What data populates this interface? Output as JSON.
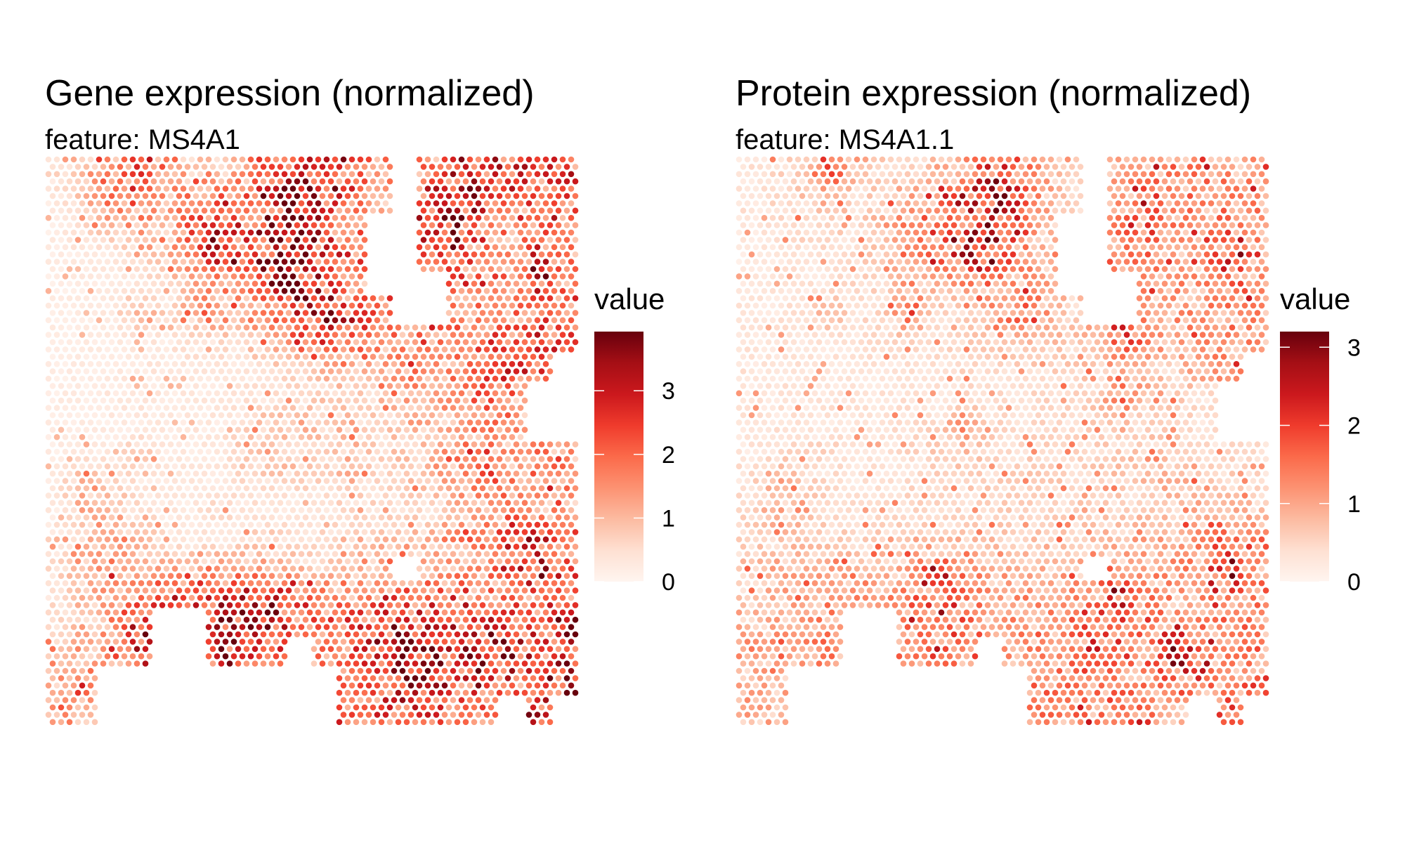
{
  "palette": [
    "#fff5f0",
    "#fee0d2",
    "#fcbba1",
    "#fc9272",
    "#fb6a4a",
    "#ef3b2c",
    "#cb181d",
    "#a50f15",
    "#67000d"
  ],
  "chart_data": [
    {
      "type": "heatmap",
      "title": "Gene expression (normalized)",
      "subtitle": "feature:  MS4A1",
      "legend": {
        "title": "value",
        "range": [
          0,
          3.93
        ],
        "ticks": [
          0,
          1,
          2,
          3
        ],
        "tick_labels": [
          "0",
          "1",
          "2",
          "3"
        ],
        "placement": "right"
      },
      "grid_note": "coarse 20x20 approximation of spot values; null = no tissue",
      "values_grid": [
        [
          0.5,
          1.0,
          1.2,
          2.5,
          1.5,
          0.8,
          0.5,
          1.0,
          2.0,
          3.0,
          2.5,
          2.0,
          1.5,
          null,
          1.5,
          2.5,
          2.5,
          2.5,
          2.0,
          2.0
        ],
        [
          0.3,
          0.8,
          1.5,
          1.8,
          1.0,
          1.5,
          2.5,
          2.0,
          2.5,
          3.5,
          3.0,
          2.0,
          1.0,
          null,
          2.5,
          3.0,
          2.5,
          2.0,
          2.0,
          2.0
        ],
        [
          0.2,
          0.5,
          1.0,
          1.2,
          0.8,
          2.0,
          2.5,
          2.0,
          3.0,
          3.5,
          2.0,
          1.0,
          null,
          null,
          2.5,
          3.0,
          1.5,
          1.0,
          1.5,
          1.8
        ],
        [
          0.2,
          0.3,
          0.3,
          0.5,
          0.8,
          1.5,
          2.5,
          2.5,
          3.5,
          3.5,
          2.5,
          2.0,
          null,
          null,
          2.0,
          2.0,
          1.5,
          1.0,
          2.5,
          1.5
        ],
        [
          0.2,
          0.2,
          0.2,
          0.3,
          0.5,
          0.8,
          1.5,
          1.5,
          2.5,
          3.0,
          2.5,
          1.0,
          null,
          null,
          null,
          2.0,
          1.5,
          1.0,
          2.5,
          1.5
        ],
        [
          0.2,
          0.2,
          0.3,
          1.2,
          0.5,
          1.0,
          1.5,
          1.0,
          1.5,
          2.5,
          3.0,
          2.5,
          1.5,
          null,
          null,
          1.5,
          1.5,
          1.5,
          2.0,
          1.5
        ],
        [
          0.2,
          0.2,
          0.2,
          0.3,
          0.3,
          0.5,
          0.5,
          0.8,
          1.0,
          1.5,
          2.0,
          2.0,
          1.5,
          1.5,
          1.5,
          1.8,
          2.0,
          2.0,
          2.0,
          2.0
        ],
        [
          0.2,
          0.2,
          0.2,
          0.3,
          0.3,
          0.3,
          0.3,
          0.3,
          0.5,
          0.5,
          0.8,
          1.0,
          0.8,
          1.5,
          1.0,
          1.5,
          1.8,
          2.5,
          2.0,
          null
        ],
        [
          0.2,
          0.2,
          0.3,
          0.3,
          0.3,
          0.3,
          0.3,
          0.4,
          0.4,
          0.5,
          0.8,
          0.5,
          0.8,
          1.0,
          1.5,
          1.5,
          2.0,
          1.0,
          null,
          null
        ],
        [
          0.2,
          0.2,
          0.2,
          0.3,
          0.3,
          0.3,
          0.3,
          0.5,
          1.0,
          0.8,
          0.8,
          0.8,
          0.5,
          1.0,
          0.8,
          1.2,
          1.5,
          1.2,
          null,
          null
        ],
        [
          0.2,
          0.3,
          0.3,
          0.8,
          0.3,
          0.3,
          0.3,
          0.8,
          1.0,
          0.8,
          0.8,
          1.0,
          0.5,
          0.8,
          1.0,
          1.5,
          1.5,
          1.2,
          1.5,
          1.2
        ],
        [
          0.3,
          1.2,
          0.8,
          0.3,
          0.3,
          0.3,
          0.3,
          0.5,
          0.5,
          0.5,
          0.5,
          0.8,
          0.5,
          0.8,
          0.8,
          1.2,
          2.0,
          1.5,
          1.5,
          1.5
        ],
        [
          0.3,
          1.0,
          0.8,
          0.5,
          0.3,
          0.3,
          0.5,
          0.3,
          0.3,
          0.3,
          0.5,
          0.5,
          0.5,
          0.5,
          0.5,
          0.8,
          1.0,
          1.5,
          1.0,
          1.0
        ],
        [
          0.5,
          0.8,
          1.0,
          0.8,
          0.5,
          0.3,
          0.3,
          0.5,
          0.8,
          0.5,
          0.5,
          0.5,
          0.8,
          0.8,
          1.0,
          1.5,
          2.0,
          2.5,
          2.5,
          2.5
        ],
        [
          0.5,
          1.0,
          1.5,
          1.0,
          1.0,
          1.0,
          1.2,
          1.0,
          1.2,
          0.8,
          0.8,
          0.8,
          1.0,
          null,
          1.0,
          1.2,
          1.5,
          2.0,
          3.0,
          2.0
        ],
        [
          0.5,
          0.8,
          1.0,
          1.5,
          2.0,
          2.5,
          2.5,
          2.5,
          2.5,
          2.0,
          1.5,
          1.5,
          1.5,
          2.0,
          2.0,
          2.0,
          1.5,
          1.5,
          1.8,
          2.0
        ],
        [
          0.5,
          0.8,
          1.5,
          2.5,
          null,
          null,
          2.5,
          3.0,
          3.0,
          2.0,
          2.0,
          2.0,
          2.5,
          3.0,
          2.5,
          2.5,
          2.5,
          2.5,
          2.5,
          3.0
        ],
        [
          1.5,
          1.0,
          1.5,
          2.5,
          null,
          null,
          2.5,
          3.0,
          2.0,
          null,
          1.5,
          2.0,
          2.5,
          3.0,
          3.0,
          2.5,
          3.0,
          3.0,
          2.0,
          2.5
        ],
        [
          1.0,
          1.5,
          null,
          null,
          null,
          null,
          null,
          null,
          null,
          null,
          null,
          2.0,
          2.0,
          3.0,
          2.5,
          2.0,
          3.0,
          2.0,
          1.5,
          3.0
        ],
        [
          1.5,
          1.0,
          null,
          null,
          null,
          null,
          null,
          null,
          null,
          null,
          null,
          2.0,
          2.0,
          2.0,
          2.0,
          2.0,
          1.5,
          null,
          2.5,
          null
        ]
      ]
    },
    {
      "type": "heatmap",
      "title": "Protein expression (normalized)",
      "subtitle": "feature:  MS4A1.1",
      "legend": {
        "title": "value",
        "range": [
          0,
          3.2
        ],
        "ticks": [
          0,
          1,
          2,
          3
        ],
        "tick_labels": [
          "0",
          "1",
          "2",
          "3"
        ],
        "placement": "right"
      },
      "grid_note": "coarse 20x20 approximation of spot values; null = no tissue",
      "values_grid": [
        [
          0.3,
          0.4,
          0.5,
          1.5,
          0.8,
          0.5,
          0.4,
          0.6,
          1.0,
          2.0,
          1.5,
          0.8,
          0.5,
          null,
          0.8,
          1.2,
          1.2,
          1.2,
          1.0,
          1.0
        ],
        [
          0.3,
          0.4,
          0.6,
          0.8,
          0.5,
          0.6,
          1.0,
          1.0,
          1.5,
          2.5,
          2.0,
          1.0,
          0.5,
          null,
          1.0,
          1.5,
          1.2,
          1.2,
          1.2,
          1.2
        ],
        [
          0.3,
          0.3,
          0.5,
          0.5,
          0.5,
          0.8,
          1.2,
          1.2,
          2.0,
          2.5,
          1.5,
          0.6,
          null,
          null,
          1.2,
          1.5,
          1.2,
          1.0,
          1.5,
          1.0
        ],
        [
          0.2,
          0.3,
          0.3,
          0.3,
          0.4,
          0.6,
          1.0,
          1.2,
          2.0,
          2.5,
          1.2,
          0.8,
          null,
          null,
          1.2,
          1.2,
          1.0,
          1.0,
          2.0,
          1.2
        ],
        [
          0.2,
          0.3,
          0.3,
          0.3,
          0.4,
          0.5,
          1.0,
          0.8,
          1.0,
          1.2,
          1.0,
          0.8,
          null,
          null,
          null,
          1.0,
          1.0,
          1.0,
          1.5,
          1.0
        ],
        [
          0.3,
          0.3,
          0.3,
          0.8,
          0.4,
          0.4,
          1.5,
          0.5,
          0.5,
          0.8,
          1.5,
          1.0,
          0.6,
          null,
          null,
          1.0,
          1.0,
          1.0,
          1.2,
          1.0
        ],
        [
          0.3,
          0.3,
          0.3,
          0.3,
          0.3,
          0.4,
          0.4,
          0.4,
          0.5,
          0.5,
          0.6,
          0.6,
          0.6,
          0.8,
          1.8,
          1.0,
          1.0,
          1.0,
          1.2,
          1.0
        ],
        [
          0.3,
          0.3,
          0.3,
          0.3,
          0.3,
          0.3,
          0.3,
          0.3,
          0.4,
          0.4,
          0.4,
          0.5,
          0.5,
          0.6,
          0.8,
          0.6,
          0.6,
          1.0,
          1.0,
          null
        ],
        [
          0.3,
          0.3,
          0.3,
          0.3,
          0.3,
          0.3,
          0.3,
          0.3,
          0.4,
          0.4,
          0.4,
          0.4,
          0.5,
          0.6,
          1.5,
          0.6,
          0.5,
          0.4,
          null,
          null
        ],
        [
          0.3,
          0.3,
          0.3,
          0.3,
          0.3,
          0.3,
          0.4,
          0.5,
          1.0,
          0.5,
          0.4,
          0.4,
          0.4,
          0.5,
          0.5,
          0.5,
          0.5,
          0.4,
          null,
          null
        ],
        [
          0.3,
          0.4,
          0.4,
          0.5,
          0.3,
          0.3,
          0.4,
          0.5,
          0.6,
          0.5,
          0.5,
          0.5,
          0.4,
          0.5,
          0.6,
          0.6,
          0.5,
          0.4,
          0.4,
          0.4
        ],
        [
          0.4,
          1.2,
          0.6,
          0.4,
          0.3,
          0.3,
          0.4,
          0.4,
          0.5,
          0.5,
          0.5,
          0.5,
          0.5,
          0.5,
          0.6,
          0.6,
          0.8,
          0.6,
          0.5,
          0.5
        ],
        [
          0.4,
          0.8,
          0.6,
          0.4,
          0.4,
          0.4,
          0.4,
          0.4,
          0.4,
          0.4,
          0.5,
          0.5,
          0.5,
          0.5,
          0.5,
          0.6,
          0.6,
          0.8,
          0.8,
          0.6
        ],
        [
          0.5,
          0.6,
          0.6,
          0.6,
          0.5,
          0.5,
          0.5,
          0.6,
          0.8,
          0.6,
          0.6,
          0.6,
          0.6,
          0.6,
          0.8,
          0.8,
          0.8,
          1.0,
          1.5,
          1.2
        ],
        [
          0.6,
          0.8,
          0.8,
          0.8,
          0.8,
          0.8,
          1.0,
          1.5,
          1.2,
          0.8,
          0.8,
          0.8,
          0.8,
          null,
          0.8,
          1.0,
          1.0,
          1.2,
          2.5,
          1.2
        ],
        [
          0.6,
          0.8,
          0.8,
          1.0,
          1.0,
          1.2,
          1.2,
          1.5,
          1.2,
          1.0,
          1.0,
          1.0,
          1.0,
          1.2,
          2.0,
          1.2,
          1.0,
          1.0,
          1.2,
          1.2
        ],
        [
          0.8,
          0.8,
          1.0,
          1.2,
          null,
          null,
          1.2,
          1.5,
          1.5,
          1.0,
          1.0,
          1.0,
          1.2,
          1.5,
          1.5,
          1.2,
          1.2,
          1.2,
          1.2,
          1.2
        ],
        [
          1.0,
          1.0,
          1.0,
          1.2,
          null,
          null,
          1.2,
          1.5,
          1.0,
          null,
          1.0,
          1.2,
          1.2,
          2.0,
          1.5,
          1.2,
          2.5,
          1.5,
          1.0,
          1.2
        ],
        [
          0.8,
          0.8,
          null,
          null,
          null,
          null,
          null,
          null,
          null,
          null,
          null,
          1.2,
          1.2,
          1.5,
          1.2,
          1.2,
          1.5,
          1.2,
          1.0,
          1.5
        ],
        [
          0.8,
          0.8,
          null,
          null,
          null,
          null,
          null,
          null,
          null,
          null,
          null,
          1.2,
          1.2,
          1.2,
          1.2,
          1.2,
          1.0,
          null,
          1.5,
          null
        ]
      ]
    }
  ]
}
